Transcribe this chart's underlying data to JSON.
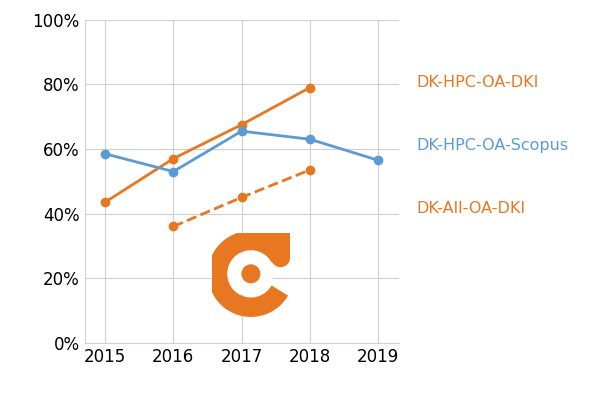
{
  "years": [
    2015,
    2016,
    2017,
    2018,
    2019
  ],
  "dki_hpc_oa_dki_years": [
    2015,
    2016,
    2017,
    2018
  ],
  "dki_hpc_oa_dki": [
    0.435,
    0.57,
    0.675,
    0.79
  ],
  "dki_hpc_oa_scopus": [
    0.585,
    0.53,
    0.655,
    0.63,
    0.565
  ],
  "dk_all_oa_dki_years": [
    2016,
    2017,
    2018
  ],
  "dk_all_oa_dki": [
    0.36,
    0.45,
    0.535
  ],
  "color_orange": "#E87722",
  "color_blue": "#5B9BD5",
  "label_dki": "DK-HPC-OA-DKI",
  "label_scopus": "DK-HPC-OA-Scopus",
  "label_all": "DK-All-OA-DKI",
  "ylim": [
    0,
    1.0
  ],
  "yticks": [
    0.0,
    0.2,
    0.4,
    0.6,
    0.8,
    1.0
  ],
  "ytick_labels": [
    "0%",
    "20%",
    "40%",
    "60%",
    "80%",
    "100%"
  ],
  "xticks": [
    2015,
    2016,
    2017,
    2018,
    2019
  ],
  "xlim": [
    2014.7,
    2019.3
  ],
  "marker": "o",
  "markersize": 6,
  "linewidth": 2.0,
  "bg_color": "#FFFFFF",
  "grid_color": "#D0D0D0",
  "fig_bg": "#FFFFFF",
  "label_fontsize": 11.5,
  "tick_fontsize": 12
}
